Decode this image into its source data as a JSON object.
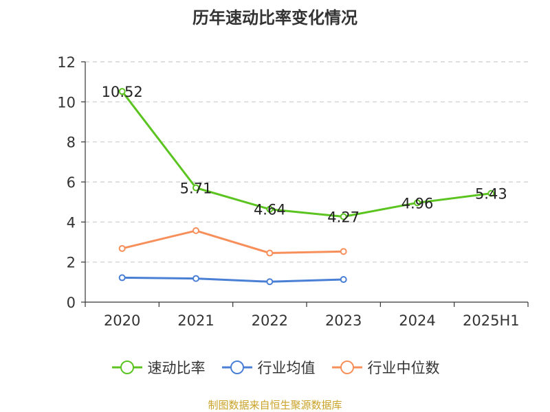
{
  "chart_data": {
    "type": "line",
    "title": "历年速动比率变化情况",
    "categories": [
      "2020",
      "2021",
      "2022",
      "2023",
      "2024",
      "2025H1"
    ],
    "ylim": [
      0,
      12
    ],
    "yticks": [
      0,
      2,
      4,
      6,
      8,
      10,
      12
    ],
    "grid": true,
    "legend_position": "bottom",
    "series": [
      {
        "name": "速动比率",
        "color": "#5cc421",
        "values": [
          10.52,
          5.71,
          4.64,
          4.27,
          4.96,
          5.43
        ],
        "labels": [
          "10.52",
          "5.71",
          "4.64",
          "4.27",
          "4.96",
          "5.43"
        ]
      },
      {
        "name": "行业均值",
        "color": "#4a7fd6",
        "values": [
          1.22,
          1.18,
          1.02,
          1.13,
          null,
          null
        ]
      },
      {
        "name": "行业中位数",
        "color": "#f78f5b",
        "values": [
          2.68,
          3.57,
          2.45,
          2.53,
          null,
          null
        ]
      }
    ]
  },
  "source": "制图数据来自恒生聚源数据库"
}
